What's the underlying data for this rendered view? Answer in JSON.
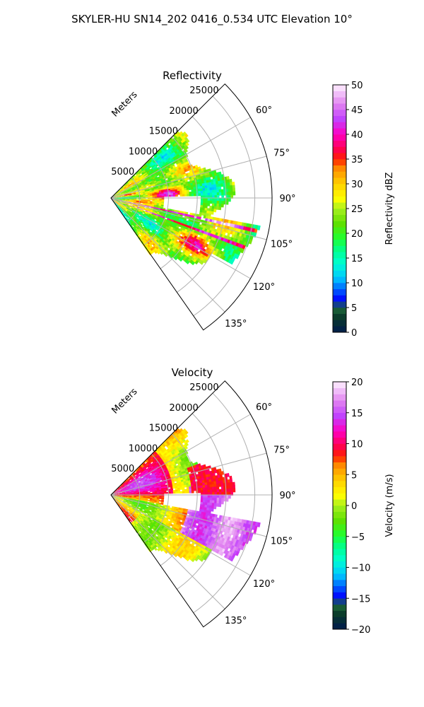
{
  "title": "SKYLER-HU  SN14_202  0416_0.534 UTC Elevation 10°",
  "colors": {
    "background": "#ffffff",
    "grid": "#b0b0b0",
    "axis": "#000000"
  },
  "chart_data": [
    {
      "type": "heatmap",
      "projection": "polar-sector",
      "title": "Reflectivity",
      "range_label": "Meters",
      "range_ticks": [
        5000,
        10000,
        15000,
        20000,
        25000
      ],
      "range_tick_labels": [
        "5000",
        "10000",
        "15000",
        "20000",
        "25000"
      ],
      "max_range": 28000,
      "azimuth_range": [
        45,
        145
      ],
      "azimuth_ticks": [
        60,
        75,
        90,
        105,
        120,
        135
      ],
      "azimuth_tick_labels": [
        "60°",
        "75°",
        "90°",
        "105°",
        "120°",
        "135°"
      ],
      "colorbar": {
        "label": "Reflectivity dBZ",
        "min": 0,
        "max": 50,
        "ticks": [
          0,
          5,
          10,
          15,
          20,
          25,
          30,
          35,
          40,
          45,
          50
        ],
        "tick_labels": [
          "0",
          "5",
          "10",
          "15",
          "20",
          "25",
          "30",
          "35",
          "40",
          "45",
          "50"
        ],
        "stops": [
          [
            0,
            "#001a4d"
          ],
          [
            0.06,
            "#0a3a2a"
          ],
          [
            0.1,
            "#1f6a3a"
          ],
          [
            0.13,
            "#0000ff"
          ],
          [
            0.18,
            "#0070ff"
          ],
          [
            0.22,
            "#00c8ff"
          ],
          [
            0.28,
            "#00ffd0"
          ],
          [
            0.33,
            "#00ff90"
          ],
          [
            0.38,
            "#20ff30"
          ],
          [
            0.44,
            "#60e000"
          ],
          [
            0.5,
            "#a8f020"
          ],
          [
            0.54,
            "#ffff00"
          ],
          [
            0.6,
            "#ffd000"
          ],
          [
            0.66,
            "#ff9000"
          ],
          [
            0.7,
            "#ff2000"
          ],
          [
            0.74,
            "#ff0050"
          ],
          [
            0.8,
            "#ff00c0"
          ],
          [
            0.86,
            "#c040ff"
          ],
          [
            0.92,
            "#e080f0"
          ],
          [
            1,
            "#fff0ff"
          ]
        ]
      },
      "field": "reflectivity",
      "field_range": [
        0,
        50
      ]
    },
    {
      "type": "heatmap",
      "projection": "polar-sector",
      "title": "Velocity",
      "range_label": "Meters",
      "range_ticks": [
        5000,
        10000,
        15000,
        20000,
        25000
      ],
      "range_tick_labels": [
        "5000",
        "10000",
        "15000",
        "20000",
        "25000"
      ],
      "max_range": 28000,
      "azimuth_range": [
        45,
        145
      ],
      "azimuth_ticks": [
        60,
        75,
        90,
        105,
        120,
        135
      ],
      "azimuth_tick_labels": [
        "60°",
        "75°",
        "90°",
        "105°",
        "120°",
        "135°"
      ],
      "colorbar": {
        "label": "Velocity (m/s)",
        "min": -20,
        "max": 20,
        "ticks": [
          -20,
          -15,
          -10,
          -5,
          0,
          5,
          10,
          15,
          20
        ],
        "tick_labels": [
          "−20",
          "−15",
          "−10",
          "−5",
          "0",
          "5",
          "10",
          "15",
          "20"
        ],
        "stops": [
          [
            0,
            "#001a4d"
          ],
          [
            0.06,
            "#0a3a2a"
          ],
          [
            0.1,
            "#1f6a3a"
          ],
          [
            0.13,
            "#0000ff"
          ],
          [
            0.18,
            "#0070ff"
          ],
          [
            0.22,
            "#00c8ff"
          ],
          [
            0.28,
            "#00ffd0"
          ],
          [
            0.33,
            "#00ff90"
          ],
          [
            0.38,
            "#20ff30"
          ],
          [
            0.44,
            "#60e000"
          ],
          [
            0.5,
            "#a8f020"
          ],
          [
            0.54,
            "#ffff00"
          ],
          [
            0.6,
            "#ffd000"
          ],
          [
            0.66,
            "#ff9000"
          ],
          [
            0.7,
            "#ff2000"
          ],
          [
            0.74,
            "#ff0050"
          ],
          [
            0.8,
            "#ff00c0"
          ],
          [
            0.86,
            "#c040ff"
          ],
          [
            0.92,
            "#e080f0"
          ],
          [
            1,
            "#fff0ff"
          ]
        ]
      },
      "field": "velocity",
      "field_range": [
        -20,
        20
      ]
    }
  ]
}
